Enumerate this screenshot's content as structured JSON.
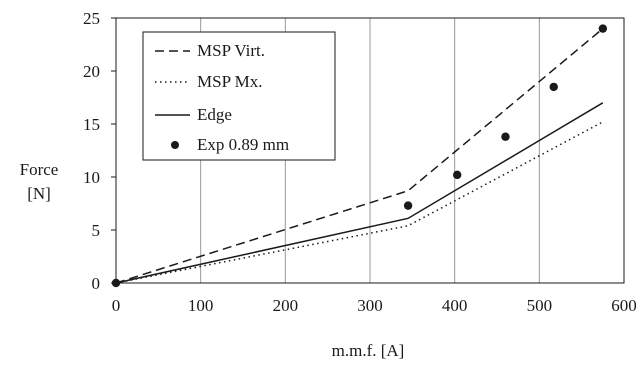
{
  "chart_data": {
    "type": "line",
    "xlabel": "m.m.f. [A]",
    "ylabel_lines": [
      "Force",
      "[N]"
    ],
    "xlim": [
      0,
      600
    ],
    "ylim": [
      0,
      25
    ],
    "x_ticks": [
      0,
      100,
      200,
      300,
      400,
      500,
      600
    ],
    "y_ticks": [
      0,
      5,
      10,
      15,
      20,
      25
    ],
    "x_tick_labels": [
      "0",
      "100",
      "200",
      "300",
      "400",
      "500",
      "600"
    ],
    "y_tick_labels": [
      "0",
      "5",
      "10",
      "15",
      "20",
      "25"
    ],
    "grid": "vertical",
    "legend_position": "top-left",
    "series": [
      {
        "name": "MSP Virt.",
        "style": "dashed",
        "x": [
          0,
          345,
          575
        ],
        "y": [
          0,
          8.7,
          24.0
        ]
      },
      {
        "name": "MSP Mx.",
        "style": "dotted",
        "x": [
          0,
          345,
          575
        ],
        "y": [
          0,
          5.4,
          15.2
        ]
      },
      {
        "name": "Edge",
        "style": "solid",
        "x": [
          0,
          345,
          575
        ],
        "y": [
          0,
          6.1,
          17.0
        ]
      },
      {
        "name": "Exp 0.89 mm",
        "style": "markers",
        "x": [
          0,
          345,
          403,
          460,
          517,
          575
        ],
        "y": [
          0,
          7.3,
          10.2,
          13.8,
          18.5,
          24.0
        ]
      }
    ]
  }
}
